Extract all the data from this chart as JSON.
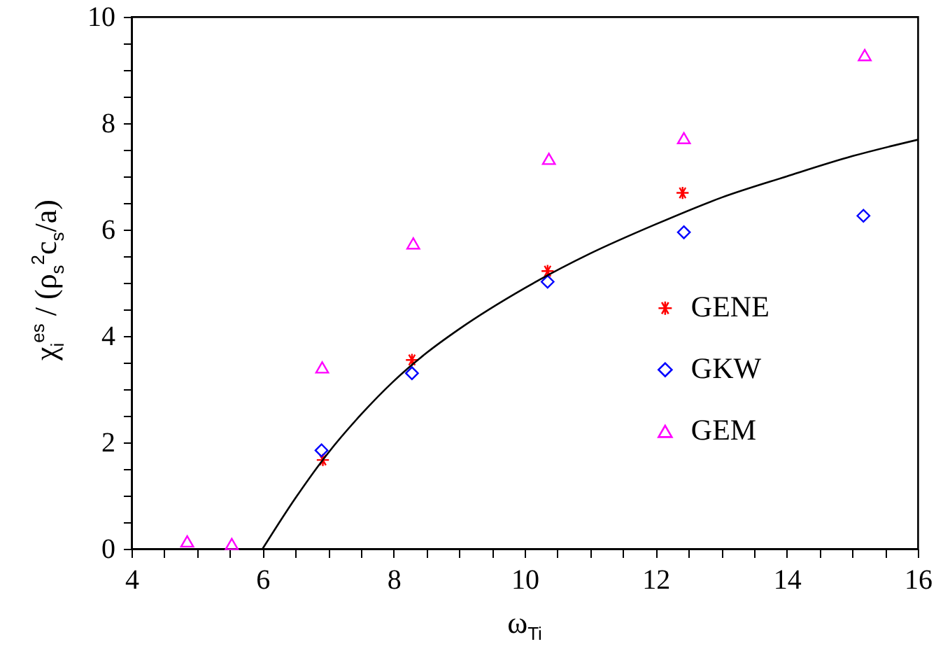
{
  "chart_data": {
    "type": "scatter",
    "xlabel": "ω$_{Ti}$",
    "ylabel": "χ$_{i}$$^{es}$ / (ρ$_{s}$$^{2}$c$_{s}$/a)",
    "xlim": [
      4,
      16
    ],
    "ylim": [
      0,
      10
    ],
    "xticks": [
      4,
      {
        "value": 4.5,
        "label": null
      },
      {
        "value": 5,
        "label": null
      },
      {
        "value": 5.5,
        "label": null
      },
      6,
      {
        "value": 6.5,
        "label": null
      },
      {
        "value": 7,
        "label": null
      },
      {
        "value": 7.5,
        "label": null
      },
      8,
      {
        "value": 8.5,
        "label": null
      },
      {
        "value": 9,
        "label": null
      },
      {
        "value": 9.5,
        "label": null
      },
      10,
      {
        "value": 10.5,
        "label": null
      },
      {
        "value": 11,
        "label": null
      },
      {
        "value": 11.5,
        "label": null
      },
      12,
      {
        "value": 12.5,
        "label": null
      },
      {
        "value": 13,
        "label": null
      },
      {
        "value": 13.5,
        "label": null
      },
      14,
      {
        "value": 14.5,
        "label": null
      },
      {
        "value": 15,
        "label": null
      },
      {
        "value": 15.5,
        "label": null
      },
      16
    ],
    "yticks": [
      0,
      {
        "value": 0.5,
        "label": null
      },
      {
        "value": 1,
        "label": null
      },
      {
        "value": 1.5,
        "label": null
      },
      2,
      {
        "value": 2.5,
        "label": null
      },
      {
        "value": 3,
        "label": null
      },
      {
        "value": 3.5,
        "label": null
      },
      4,
      {
        "value": 4.5,
        "label": null
      },
      {
        "value": 5,
        "label": null
      },
      {
        "value": 5.5,
        "label": null
      },
      6,
      {
        "value": 6.5,
        "label": null
      },
      {
        "value": 7,
        "label": null
      },
      {
        "value": 7.5,
        "label": null
      },
      8,
      {
        "value": 8.5,
        "label": null
      },
      {
        "value": 9,
        "label": null
      },
      {
        "value": 9.5,
        "label": null
      },
      10
    ],
    "grid": false,
    "legend": "right",
    "series": [
      {
        "type": "line",
        "color": "#000000",
        "marker": "none",
        "line_style": "solid",
        "x": [
          6,
          6.5,
          7,
          7.5,
          8,
          8.5,
          9,
          10,
          11,
          12,
          13,
          14,
          15,
          16
        ],
        "values": [
          0,
          0.95,
          1.8,
          2.52,
          3.15,
          3.68,
          4.13,
          4.9,
          5.55,
          6.1,
          6.6,
          7.0,
          7.38,
          7.69
        ]
      },
      {
        "name": "GENE",
        "color": "#ff0000",
        "marker": "cross",
        "x": [
          6.92,
          8.28,
          10.35,
          12.41
        ],
        "values": [
          1.67,
          3.55,
          5.22,
          6.69
        ]
      },
      {
        "name": "GKW",
        "color": "#0000ff",
        "marker": "diamond",
        "x": [
          6.9,
          8.28,
          10.35,
          12.43,
          15.17
        ],
        "values": [
          1.85,
          3.3,
          5.02,
          5.95,
          6.26
        ]
      },
      {
        "name": "GEM",
        "color": "#ff00ff",
        "marker": "triangle",
        "x": [
          4.85,
          5.53,
          6.91,
          8.3,
          10.37,
          12.43,
          15.19
        ],
        "values": [
          0.14,
          0.09,
          3.41,
          5.74,
          7.33,
          7.72,
          9.28
        ]
      }
    ]
  }
}
